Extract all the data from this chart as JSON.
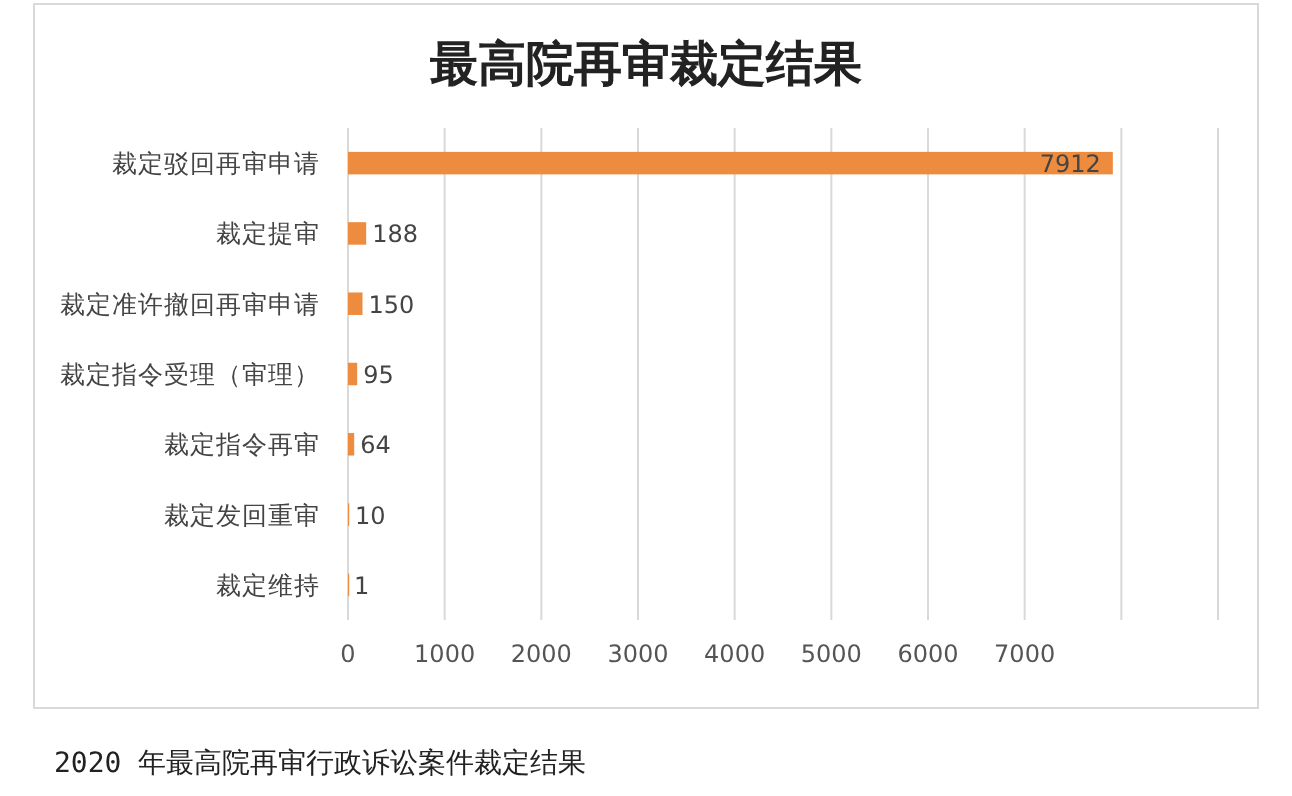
{
  "chart_data": {
    "type": "bar",
    "orientation": "horizontal",
    "title": "最高院再审裁定结果",
    "categories": [
      "裁定驳回再审申请",
      "裁定提审",
      "裁定准许撤回再审申请",
      "裁定指令受理（审理）",
      "裁定指令再审",
      "裁定发回重审",
      "裁定维持"
    ],
    "values": [
      7912,
      188,
      150,
      95,
      64,
      10,
      1
    ],
    "color": "#ed8b3f",
    "xlim": [
      0,
      9000
    ],
    "xticks": [
      0,
      1000,
      2000,
      3000,
      4000,
      5000,
      6000,
      7000,
      {
        "value": 8000,
        "label": null
      },
      {
        "value": 9000,
        "label": null
      }
    ],
    "grid": "x",
    "data_labels": true,
    "annotations": [
      "2020 年最高院再审行政诉讼案件裁定结果"
    ]
  }
}
